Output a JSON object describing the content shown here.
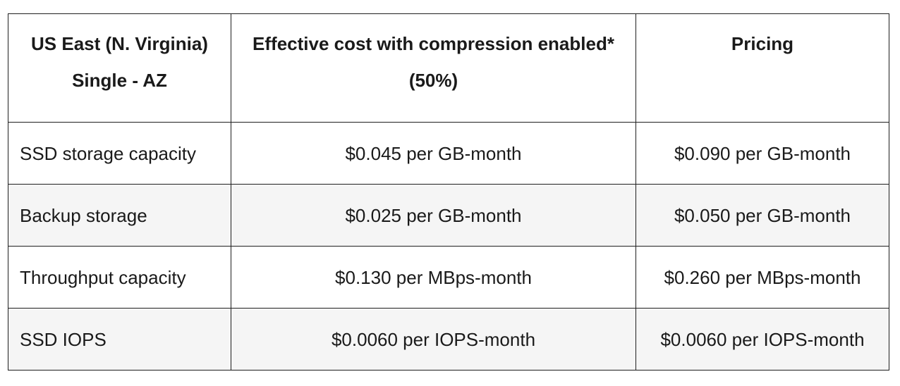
{
  "table": {
    "headers": {
      "region_line1": "US East (N. Virginia)",
      "region_line2": "Single - AZ",
      "effective_line1": "Effective cost with compression enabled*",
      "effective_line2": "(50%)",
      "pricing": "Pricing"
    },
    "rows": [
      {
        "item": "SSD storage capacity",
        "effective_cost": "$0.045 per GB-month",
        "pricing": "$0.090 per GB-month"
      },
      {
        "item": "Backup storage",
        "effective_cost": "$0.025 per GB-month",
        "pricing": "$0.050 per GB-month"
      },
      {
        "item": "Throughput capacity",
        "effective_cost": "$0.130 per MBps-month",
        "pricing": "$0.260 per MBps-month"
      },
      {
        "item": "SSD IOPS",
        "effective_cost": "$0.0060 per IOPS-month",
        "pricing": "$0.0060 per IOPS-month"
      }
    ]
  },
  "colors": {
    "border": "#1f1f1f",
    "alt_row_background": "#f5f5f5",
    "text": "#1a1a1a"
  }
}
